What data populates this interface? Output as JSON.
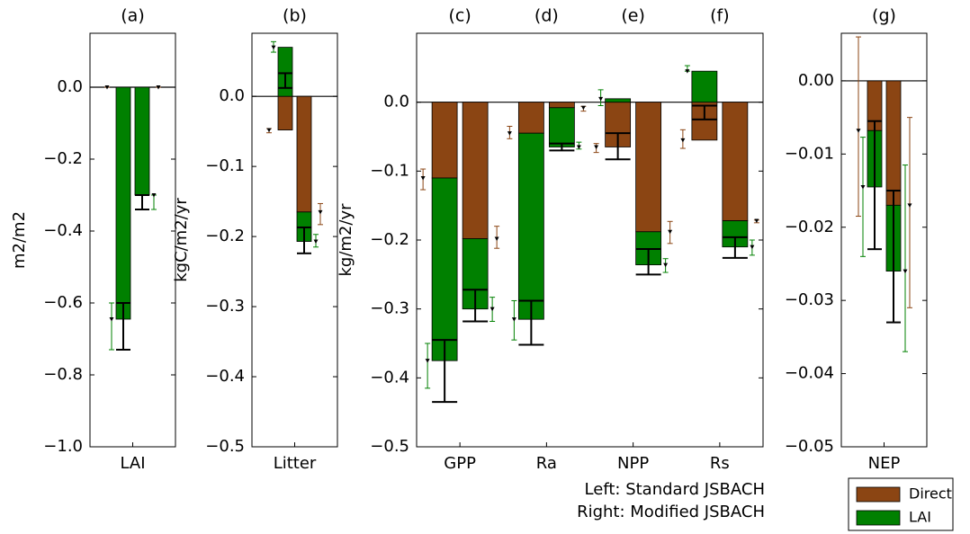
{
  "chart_data": [
    {
      "type": "bar",
      "title": "(a)",
      "ylabel": "m2/m2",
      "ylim": [
        -1.0,
        0.15
      ],
      "yticks": [
        {
          "value": 0,
          "label": "0.0"
        },
        {
          "value": -0.2,
          "label": "−0.2"
        },
        {
          "value": -0.4,
          "label": "−0.4"
        },
        {
          "value": -0.6,
          "label": "−0.6"
        },
        {
          "value": -0.8,
          "label": "−0.8"
        },
        {
          "value": -1.0,
          "label": "−1.0"
        }
      ],
      "categories": [
        "LAI"
      ],
      "series": [
        {
          "values": [
            [
              0,
              0
            ]
          ],
          "ranges": [
            [
              [
                0,
                0
              ],
              [
                0,
                0
              ]
            ]
          ]
        },
        {
          "values": [
            [
              -0.645,
              -0.3
            ]
          ],
          "ranges": [
            [
              [
                -0.73,
                -0.6
              ],
              [
                -0.34,
                -0.3
              ]
            ]
          ]
        }
      ],
      "total_ranges": [
        [
          [
            -0.73,
            -0.6
          ],
          [
            -0.34,
            -0.3
          ]
        ]
      ]
    },
    {
      "type": "bar",
      "title": "(b)",
      "ylabel": "kgC/m2/yr",
      "ylim": [
        -0.5,
        0.09
      ],
      "yticks": [
        {
          "value": 0,
          "label": "0.0"
        },
        {
          "value": -0.1,
          "label": "−0.1"
        },
        {
          "value": -0.2,
          "label": "−0.2"
        },
        {
          "value": -0.3,
          "label": "−0.3"
        },
        {
          "value": -0.4,
          "label": "−0.4"
        },
        {
          "value": -0.5,
          "label": "−0.5"
        }
      ],
      "categories": [
        "Litter"
      ],
      "series": [
        {
          "values": [
            [
              -0.048,
              -0.165
            ]
          ],
          "ranges": [
            [
              [
                -0.052,
                -0.046
              ],
              [
                -0.183,
                -0.153
              ]
            ]
          ]
        },
        {
          "values": [
            [
              0.07,
              -0.042
            ]
          ],
          "ranges": [
            [
              [
                0.063,
                0.078
              ],
              [
                -0.215,
                -0.197
              ]
            ]
          ]
        }
      ],
      "total_ranges": [
        [
          [
            0.012,
            0.033
          ],
          [
            -0.224,
            -0.187
          ]
        ]
      ]
    },
    {
      "type": "bar",
      "title": [
        "(c)",
        "(d)",
        "(e)",
        "(f)"
      ],
      "ylabel": "kg/m2/yr",
      "ylim": [
        -0.5,
        0.1
      ],
      "yticks": [
        {
          "value": 0,
          "label": "0.0"
        },
        {
          "value": -0.1,
          "label": "−0.1"
        },
        {
          "value": -0.2,
          "label": "−0.2"
        },
        {
          "value": -0.3,
          "label": "−0.3"
        },
        {
          "value": -0.4,
          "label": "−0.4"
        },
        {
          "value": -0.5,
          "label": "−0.5"
        }
      ],
      "categories": [
        "GPP",
        "Ra",
        "NPP",
        "Rs"
      ],
      "series": [
        {
          "values": [
            [
              -0.11,
              -0.198
            ],
            [
              -0.045,
              -0.008
            ],
            [
              -0.065,
              -0.188
            ],
            [
              -0.055,
              -0.172
            ]
          ],
          "ranges": [
            [
              [
                -0.127,
                -0.097
              ],
              [
                -0.212,
                -0.18
              ]
            ],
            [
              [
                -0.053,
                -0.035
              ],
              [
                -0.013,
                -0.006
              ]
            ],
            [
              [
                -0.073,
                -0.06
              ],
              [
                -0.205,
                -0.173
              ]
            ],
            [
              [
                -0.067,
                -0.04
              ],
              [
                -0.175,
                -0.171
              ]
            ]
          ]
        },
        {
          "values": [
            [
              -0.265,
              -0.102
            ],
            [
              -0.27,
              -0.057
            ],
            [
              0.005,
              -0.048
            ],
            [
              0.045,
              -0.038
            ]
          ],
          "ranges": [
            [
              [
                -0.415,
                -0.35
              ],
              [
                -0.318,
                -0.283
              ]
            ],
            [
              [
                -0.345,
                -0.288
              ],
              [
                -0.068,
                -0.058
              ]
            ],
            [
              [
                -0.005,
                0.018
              ],
              [
                -0.247,
                -0.227
              ]
            ],
            [
              [
                0.045,
                0.053
              ],
              [
                -0.222,
                -0.2
              ]
            ]
          ]
        }
      ],
      "total_ranges": [
        [
          [
            -0.435,
            -0.345
          ],
          [
            -0.318,
            -0.272
          ]
        ],
        [
          [
            -0.352,
            -0.288
          ],
          [
            -0.07,
            -0.06
          ]
        ],
        [
          [
            -0.083,
            -0.045
          ],
          [
            -0.25,
            -0.213
          ]
        ],
        [
          [
            -0.025,
            -0.005
          ],
          [
            -0.226,
            -0.196
          ]
        ]
      ]
    },
    {
      "type": "bar",
      "title": "(g)",
      "ylim": [
        -0.05,
        0.0065
      ],
      "yticks": [
        {
          "value": 0,
          "label": "0.00"
        },
        {
          "value": -0.01,
          "label": "−0.01"
        },
        {
          "value": -0.02,
          "label": "−0.02"
        },
        {
          "value": -0.03,
          "label": "−0.03"
        },
        {
          "value": -0.04,
          "label": "−0.04"
        },
        {
          "value": -0.05,
          "label": "−0.05"
        }
      ],
      "categories": [
        "NEP"
      ],
      "series": [
        {
          "values": [
            [
              -0.0068,
              -0.017
            ]
          ],
          "ranges": [
            [
              [
                -0.0185,
                0.006
              ],
              [
                -0.031,
                -0.005
              ]
            ]
          ]
        },
        {
          "values": [
            [
              -0.0077,
              -0.009
            ]
          ],
          "ranges": [
            [
              [
                -0.024,
                -0.0077
              ],
              [
                -0.037,
                -0.0115
              ]
            ]
          ]
        }
      ],
      "total_ranges": [
        [
          [
            -0.023,
            -0.0055
          ],
          [
            -0.033,
            -0.015
          ]
        ]
      ]
    }
  ],
  "legend": [
    {
      "name": "Direct",
      "color": "#8b4513"
    },
    {
      "name": "LAI",
      "color": "#008000"
    }
  ],
  "note": [
    "Left: Standard JSBACH",
    "Right: Modified JSBACH"
  ]
}
